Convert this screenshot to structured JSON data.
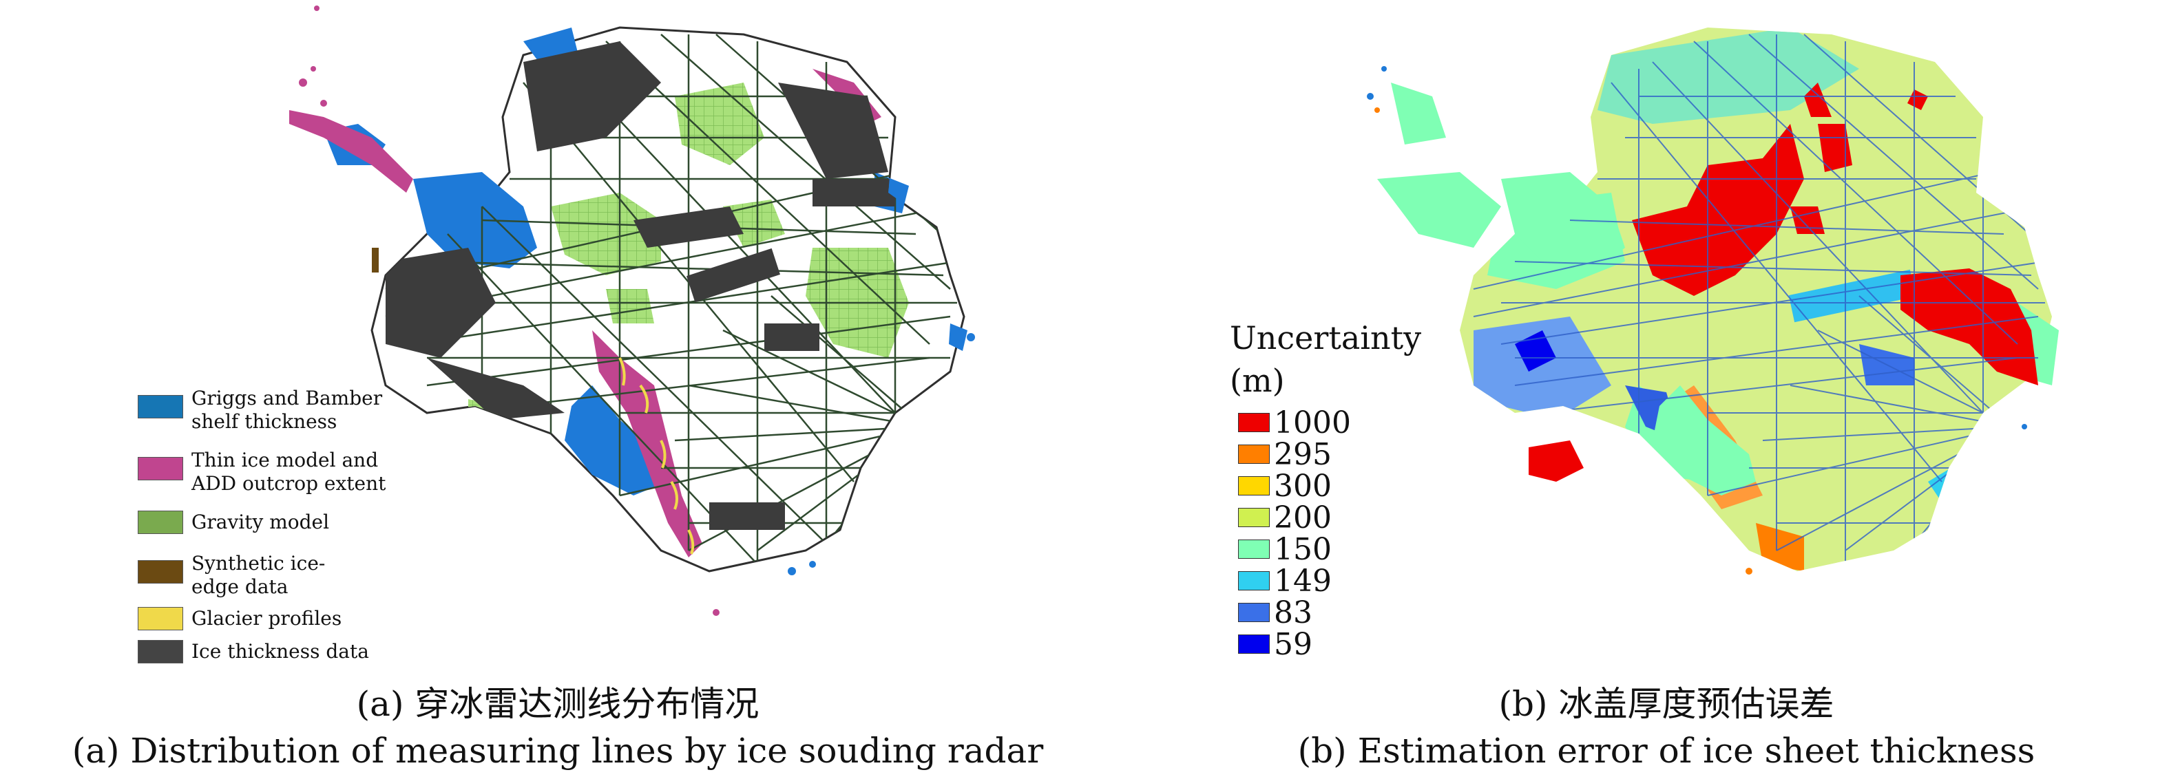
{
  "panel_a": {
    "legend": [
      {
        "label": "Griggs and Bamber\nshelf thickness",
        "color": "#1676b4",
        "icon": "blue-swatch"
      },
      {
        "label": "Thin ice model and\nADD outcrop extent",
        "color": "#c0458f",
        "icon": "magenta-swatch"
      },
      {
        "label": "Gravity model",
        "color": "#7aaa4e",
        "icon": "green-swatch"
      },
      {
        "label": "Synthetic ice-\nedge data",
        "color": "#6b4a12",
        "icon": "brown-swatch"
      },
      {
        "label": "Glacier profiles",
        "color": "#f0d94a",
        "icon": "yellow-swatch"
      },
      {
        "label": "Ice thickness data",
        "color": "#444444",
        "icon": "dark-gray-swatch"
      }
    ],
    "caption_cn": "(a) 穿冰雷达测线分布情况",
    "caption_en": "(a) Distribution of measuring lines by ice souding radar"
  },
  "panel_b": {
    "legend_title": "Uncertainty\n(m)",
    "legend": [
      {
        "label": "1000",
        "color": "#ee0000"
      },
      {
        "label": "295",
        "color": "#ff7f00"
      },
      {
        "label": "300",
        "color": "#ffd700"
      },
      {
        "label": "200",
        "color": "#d0f050"
      },
      {
        "label": "150",
        "color": "#7fffb4"
      },
      {
        "label": "149",
        "color": "#30d0f0"
      },
      {
        "label": "83",
        "color": "#3a70e8"
      },
      {
        "label": "59",
        "color": "#0000ee"
      }
    ],
    "caption_cn": "(b) 冰盖厚度预估误差",
    "caption_en": "(b) Estimation error of ice sheet thickness"
  }
}
